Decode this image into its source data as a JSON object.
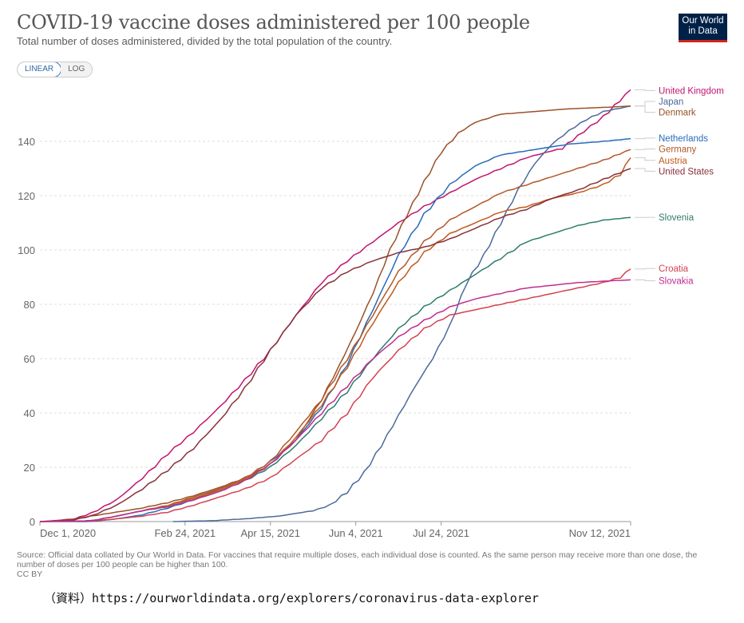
{
  "header": {
    "title": "COVID-19 vaccine doses administered per 100 people",
    "subtitle": "Total number of doses administered, divided by the total population of the country.",
    "logo_line1": "Our World",
    "logo_line2": "in Data"
  },
  "scale_toggle": {
    "options": [
      "LINEAR",
      "LOG"
    ],
    "selected": "LINEAR"
  },
  "footer": {
    "source": "Source: Official data collated by Our World in Data. For vaccines that require multiple doses, each individual dose is counted. As the same person may receive more than one dose, the number of doses per 100 people can be higher than 100.",
    "license": "CC BY",
    "reference": "（資料）https://ourworldindata.org/explorers/coronavirus-data-explorer"
  },
  "chart_data": {
    "type": "line",
    "title": "COVID-19 vaccine doses administered per 100 people",
    "xlabel": "",
    "ylabel": "",
    "x_start": "2020-12-01",
    "x_unit": "days since Dec 1, 2020",
    "xlim": [
      0,
      346
    ],
    "ylim": [
      0,
      160
    ],
    "yticks": [
      0,
      20,
      40,
      60,
      80,
      100,
      120,
      140
    ],
    "xticks": [
      {
        "day": 0,
        "label": "Dec 1, 2020"
      },
      {
        "day": 85,
        "label": "Feb 24, 2021"
      },
      {
        "day": 135,
        "label": "Apr 15, 2021"
      },
      {
        "day": 185,
        "label": "Jun 4, 2021"
      },
      {
        "day": 235,
        "label": "Jul 24, 2021"
      },
      {
        "day": 346,
        "label": "Nov 12, 2021"
      }
    ],
    "grid": true,
    "legend": "right, inline labels",
    "series": [
      {
        "name": "United Kingdom",
        "color": "#c0166f",
        "x": [
          0,
          8,
          20,
          30,
          45,
          60,
          75,
          90,
          105,
          120,
          135,
          150,
          165,
          180,
          195,
          210,
          225,
          240,
          255,
          270,
          285,
          300,
          306,
          315,
          330,
          346
        ],
        "y": [
          0,
          0.3,
          1,
          3,
          8,
          16,
          25,
          33,
          42,
          52,
          63,
          76,
          88,
          96,
          103,
          110,
          116,
          121,
          126,
          130,
          134,
          136.5,
          137.5,
          142,
          149,
          159
        ]
      },
      {
        "name": "Japan",
        "color": "#4c6a9c",
        "x": [
          78,
          100,
          120,
          140,
          160,
          170,
          180,
          190,
          200,
          210,
          220,
          230,
          240,
          250,
          260,
          270,
          280,
          290,
          300,
          310,
          320,
          330,
          346
        ],
        "y": [
          0,
          0.3,
          1,
          2,
          4,
          6,
          11,
          18,
          28,
          39,
          50,
          60,
          72,
          88,
          98,
          110,
          122,
          132,
          139,
          144,
          148,
          151,
          153
        ]
      },
      {
        "name": "Denmark",
        "color": "#9a5129",
        "x": [
          0,
          15,
          30,
          45,
          60,
          75,
          90,
          105,
          120,
          135,
          150,
          165,
          175,
          185,
          195,
          205,
          215,
          225,
          235,
          245,
          255,
          270,
          290,
          310,
          330,
          346
        ],
        "y": [
          0,
          0.5,
          2,
          3.5,
          5,
          7,
          9.5,
          12.5,
          16,
          21,
          30,
          45,
          57,
          70,
          84,
          100,
          113,
          125,
          136,
          143,
          147,
          150,
          151,
          152,
          152.5,
          153
        ]
      },
      {
        "name": "Netherlands",
        "color": "#286bbb",
        "x": [
          0,
          30,
          45,
          60,
          75,
          90,
          105,
          120,
          135,
          150,
          165,
          180,
          195,
          210,
          225,
          240,
          255,
          270,
          290,
          310,
          330,
          346
        ],
        "y": [
          0,
          0,
          1,
          2.5,
          5,
          8,
          12,
          16,
          22,
          30,
          42,
          58,
          78,
          98,
          113,
          124,
          131,
          135,
          137,
          139,
          140,
          141
        ]
      },
      {
        "name": "Germany",
        "color": "#b1582a",
        "x": [
          0,
          30,
          45,
          60,
          75,
          90,
          105,
          120,
          135,
          150,
          165,
          180,
          195,
          210,
          225,
          240,
          255,
          270,
          285,
          300,
          315,
          330,
          346
        ],
        "y": [
          0,
          0.3,
          2,
          4,
          6,
          9,
          12,
          16,
          22,
          33,
          45,
          60,
          76,
          92,
          103,
          111,
          116,
          121,
          124,
          127,
          130,
          133,
          137
        ]
      },
      {
        "name": "Austria",
        "color": "#c15a1c",
        "x": [
          0,
          30,
          45,
          60,
          75,
          90,
          105,
          120,
          135,
          150,
          165,
          180,
          195,
          210,
          225,
          240,
          255,
          270,
          285,
          300,
          315,
          330,
          340,
          346
        ],
        "y": [
          0,
          0.3,
          2,
          4,
          6,
          8.5,
          11.5,
          15.5,
          21,
          31,
          43,
          57,
          73,
          88,
          99,
          106,
          110,
          114,
          116,
          119,
          121,
          124,
          128,
          134
        ]
      },
      {
        "name": "United States",
        "color": "#883039",
        "x": [
          0,
          10,
          20,
          30,
          45,
          60,
          75,
          90,
          105,
          120,
          135,
          150,
          165,
          180,
          195,
          210,
          225,
          240,
          255,
          270,
          285,
          300,
          315,
          330,
          346
        ],
        "y": [
          0,
          0.2,
          0.7,
          2,
          6,
          12,
          19,
          27,
          37,
          49,
          63,
          76,
          86,
          92,
          96,
          99,
          101,
          104,
          108,
          112,
          115,
          119,
          122,
          126,
          130
        ]
      },
      {
        "name": "Slovenia",
        "color": "#2e7d6c",
        "x": [
          0,
          30,
          45,
          60,
          75,
          90,
          105,
          120,
          135,
          150,
          165,
          180,
          195,
          210,
          225,
          240,
          255,
          270,
          285,
          300,
          315,
          330,
          346
        ],
        "y": [
          0,
          0.3,
          2,
          4,
          5.5,
          8,
          11,
          15,
          20,
          28,
          38,
          48,
          60,
          71,
          79,
          85,
          91,
          97,
          103,
          106,
          109,
          111,
          112
        ]
      },
      {
        "name": "Croatia",
        "color": "#d4424f",
        "x": [
          0,
          30,
          45,
          60,
          75,
          90,
          105,
          120,
          135,
          150,
          165,
          180,
          195,
          210,
          225,
          240,
          255,
          270,
          285,
          300,
          315,
          330,
          340,
          346
        ],
        "y": [
          0,
          0.2,
          1,
          2,
          3.5,
          6,
          9,
          12,
          16,
          23,
          30,
          40,
          53,
          63,
          71,
          76,
          78,
          80,
          82,
          84,
          86,
          88,
          90,
          93
        ]
      },
      {
        "name": "Slovakia",
        "color": "#c02d92",
        "x": [
          0,
          30,
          45,
          60,
          75,
          90,
          105,
          120,
          135,
          150,
          165,
          180,
          195,
          210,
          225,
          240,
          255,
          270,
          285,
          300,
          315,
          330,
          346
        ],
        "y": [
          0,
          0.3,
          2,
          4,
          5.5,
          8,
          11,
          15,
          21,
          30,
          40,
          50,
          60,
          68,
          74,
          79,
          82,
          84,
          86,
          87,
          88,
          88.5,
          89
        ]
      }
    ],
    "labels": [
      {
        "series": "United Kingdom",
        "text": "United Kingdom",
        "label_y": 159
      },
      {
        "series": "Japan",
        "text": "Japan",
        "label_y": 155
      },
      {
        "series": "Denmark",
        "text": "Denmark",
        "label_y": 151
      },
      {
        "series": "Netherlands",
        "text": "Netherlands",
        "label_y": 141.5
      },
      {
        "series": "Germany",
        "text": "Germany",
        "label_y": 137.5
      },
      {
        "series": "Austria",
        "text": "Austria",
        "label_y": 133.3
      },
      {
        "series": "United States",
        "text": "United States",
        "label_y": 129.3
      },
      {
        "series": "Slovenia",
        "text": "Slovenia",
        "label_y": 112.3
      },
      {
        "series": "Croatia",
        "text": "Croatia",
        "label_y": 93.5
      },
      {
        "series": "Slovakia",
        "text": "Slovakia",
        "label_y": 89
      }
    ]
  }
}
